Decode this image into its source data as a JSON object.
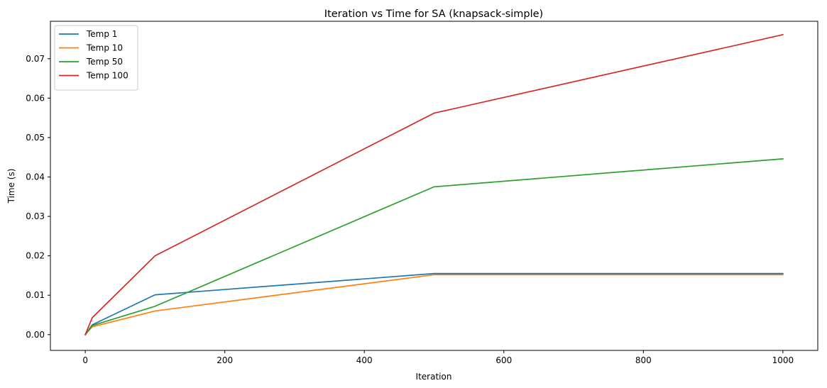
{
  "chart_data": {
    "type": "line",
    "title": "Iteration vs Time for SA (knapsack-simple)",
    "xlabel": "Iteration",
    "ylabel": "Time (s)",
    "xlim": [
      -50,
      1050
    ],
    "ylim": [
      -0.004,
      0.0795
    ],
    "xticks": [
      0,
      200,
      400,
      600,
      800,
      1000
    ],
    "xtick_labels": [
      "0",
      "200",
      "400",
      "600",
      "800",
      "1000"
    ],
    "yticks": [
      0.0,
      0.01,
      0.02,
      0.03,
      0.04,
      0.05,
      0.06,
      0.07
    ],
    "ytick_labels": [
      "0.00",
      "0.01",
      "0.02",
      "0.03",
      "0.04",
      "0.05",
      "0.06",
      "0.07"
    ],
    "grid": false,
    "legend_position": "top-left",
    "x": [
      0,
      10,
      100,
      500,
      1000
    ],
    "series": [
      {
        "name": "Temp 1",
        "color": "#1f77b4",
        "values": [
          0.0,
          0.0025,
          0.0101,
          0.0155,
          0.0155
        ]
      },
      {
        "name": "Temp 10",
        "color": "#ff7f0e",
        "values": [
          0.0,
          0.002,
          0.006,
          0.0152,
          0.0152
        ]
      },
      {
        "name": "Temp 50",
        "color": "#2ca02c",
        "values": [
          0.0,
          0.0023,
          0.0072,
          0.0375,
          0.0446
        ]
      },
      {
        "name": "Temp 100",
        "color": "#d62728",
        "values": [
          0.0,
          0.0043,
          0.02,
          0.0562,
          0.0761
        ]
      }
    ]
  }
}
